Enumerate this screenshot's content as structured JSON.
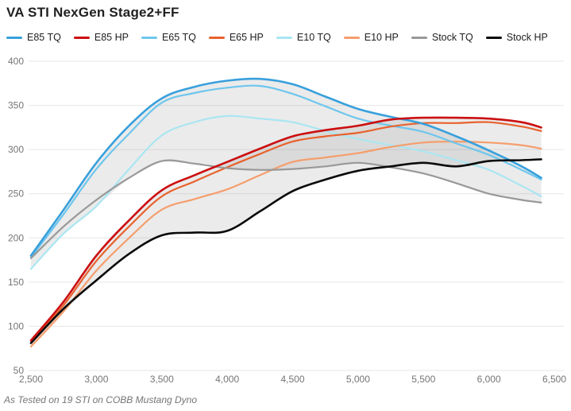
{
  "title": "VA STI NexGen Stage2+FF",
  "footer": "As Tested on 19 STI on COBB Mustang Dyno",
  "colors": {
    "background": "#ffffff",
    "title_text": "#212121",
    "axis_text": "#757575",
    "gridline": "#e6e6e6",
    "band_fill": "rgba(128,128,128,0.16)"
  },
  "chart_data": {
    "type": "line",
    "title": "VA STI NexGen Stage2+FF",
    "xlabel": "",
    "ylabel": "",
    "xlim": [
      2500,
      6500
    ],
    "ylim": [
      50,
      400
    ],
    "grid": "horizontal-only",
    "legend_position": "top",
    "x_ticks": [
      "2,500",
      "3,000",
      "3,500",
      "4,000",
      "4,500",
      "5,000",
      "5,500",
      "6,000",
      "6,500"
    ],
    "x_tick_values": [
      2500,
      3000,
      3500,
      4000,
      4500,
      5000,
      5500,
      6000,
      6500
    ],
    "y_ticks": [
      400,
      350,
      300,
      250,
      200,
      150,
      100,
      50
    ],
    "x": [
      2500,
      2750,
      3000,
      3250,
      3500,
      3750,
      4000,
      4250,
      4500,
      4750,
      5000,
      5250,
      5500,
      5750,
      6000,
      6250,
      6400
    ],
    "series": [
      {
        "name": "E85 TQ",
        "color": "#38a0dc",
        "width": 2.6,
        "values": [
          180,
          232,
          285,
          327,
          358,
          371,
          378,
          380,
          374,
          360,
          346,
          337,
          329,
          315,
          299,
          281,
          268
        ]
      },
      {
        "name": "E85 HP",
        "color": "#cc0f10",
        "width": 2.6,
        "values": [
          84,
          128,
          180,
          220,
          254,
          271,
          286,
          301,
          315,
          322,
          327,
          334,
          336,
          336,
          335,
          331,
          325
        ]
      },
      {
        "name": "E65 TQ",
        "color": "#6ec6ed",
        "width": 2.2,
        "values": [
          178,
          227,
          278,
          318,
          353,
          364,
          370,
          372,
          363,
          349,
          335,
          327,
          320,
          307,
          294,
          277,
          266
        ]
      },
      {
        "name": "E65 HP",
        "color": "#e8622d",
        "width": 2.2,
        "values": [
          83,
          124,
          174,
          213,
          247,
          264,
          280,
          295,
          309,
          315,
          319,
          326,
          330,
          330,
          331,
          326,
          321
        ]
      },
      {
        "name": "E10 TQ",
        "color": "#aae6f2",
        "width": 2.2,
        "values": [
          165,
          205,
          236,
          278,
          316,
          331,
          338,
          335,
          331,
          321,
          312,
          305,
          298,
          288,
          277,
          259,
          247
        ]
      },
      {
        "name": "E10 HP",
        "color": "#f59e6d",
        "width": 2.2,
        "values": [
          77,
          117,
          163,
          200,
          232,
          244,
          255,
          271,
          286,
          291,
          296,
          303,
          308,
          309,
          308,
          305,
          301
        ]
      },
      {
        "name": "Stock TQ",
        "color": "#999999",
        "width": 2.2,
        "values": [
          177,
          213,
          243,
          268,
          287,
          284,
          279,
          277,
          278,
          281,
          285,
          280,
          273,
          262,
          250,
          243,
          240
        ]
      },
      {
        "name": "Stock HP",
        "color": "#0a0a0a",
        "width": 2.6,
        "values": [
          81,
          120,
          152,
          182,
          203,
          206,
          208,
          230,
          253,
          266,
          276,
          281,
          285,
          281,
          287,
          288,
          289
        ]
      }
    ],
    "bands": [
      {
        "name": "tq-gain-band",
        "upper": "E85 TQ",
        "lower_min_of": [
          "E10 TQ",
          "Stock TQ"
        ]
      },
      {
        "name": "hp-gain-band",
        "upper": "E85 HP",
        "lower_min_of": [
          "E10 HP",
          "Stock HP"
        ]
      }
    ]
  }
}
